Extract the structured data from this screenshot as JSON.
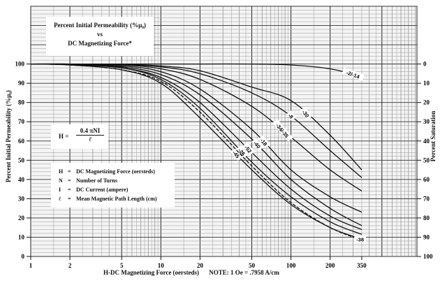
{
  "chart_data": {
    "type": "line",
    "title": [
      "Percent Initial Permeability (%μ₀)",
      "vs",
      "DC Magnetizing Force*"
    ],
    "xlabel": "H-DC Magnetizing Force (oersteds)",
    "xnote": "NOTE:  1 Oe = .7958 A/cm",
    "ylabel": "Percent Initial Permeability (%μ₀)",
    "y2label": "Percent Saturation",
    "xscale": "log",
    "xlim": [
      1,
      930
    ],
    "ylim": [
      0,
      130
    ],
    "grid": true,
    "x_ticks": [
      "1",
      "2",
      "5",
      "10",
      "20",
      "50",
      "100",
      "200",
      "350"
    ],
    "y_ticks": [
      "0",
      "10",
      "20",
      "30",
      "40",
      "50",
      "60",
      "70",
      "80",
      "90",
      "100"
    ],
    "y2_ticks": [
      "100",
      "90",
      "80",
      "70",
      "60",
      "50",
      "40",
      "30",
      "20",
      "10",
      "0"
    ],
    "x": [
      1,
      2,
      5,
      10,
      20,
      50,
      100,
      200,
      350
    ],
    "series": [
      {
        "name": "-2/-14",
        "values": [
          100,
          100,
          100,
          100,
          100,
          100,
          99.5,
          97.5,
          93.5
        ]
      },
      {
        "name": "-30",
        "values": [
          100,
          100,
          99.8,
          99,
          96.5,
          88,
          81,
          63,
          45
        ]
      },
      {
        "name": "-8",
        "values": [
          100,
          100,
          99.7,
          98.5,
          95,
          85,
          73,
          55,
          41
        ]
      },
      {
        "name": "-34/-35",
        "values": [
          100,
          100,
          99.5,
          97.5,
          92,
          78,
          62,
          45,
          34
        ]
      },
      {
        "name": "-18",
        "values": [
          100,
          99.8,
          99,
          96,
          87,
          66,
          45,
          31,
          23
        ]
      },
      {
        "name": "-40",
        "values": [
          100,
          99.8,
          98.5,
          94.5,
          84,
          61,
          40,
          25,
          16
        ]
      },
      {
        "name": "-52",
        "values": [
          100,
          99.7,
          98,
          93,
          80,
          54,
          35,
          21,
          14
        ]
      },
      {
        "name": "-26",
        "values": [
          100,
          99.7,
          98,
          92,
          77,
          49,
          31,
          18,
          11.5
        ]
      },
      {
        "name": "-45",
        "values": [
          100,
          99.5,
          97,
          90,
          72,
          45,
          27,
          15,
          9
        ]
      },
      {
        "name": "-38",
        "values": [
          100,
          99.5,
          97,
          91,
          75,
          47,
          28,
          15,
          8.5
        ],
        "dashed": true
      }
    ],
    "formula": {
      "lhs": "H =",
      "numerator": "0.4 πNI",
      "denominator": "ℓ"
    },
    "definitions": [
      {
        "symbol": "H",
        "eq": "=",
        "text": "DC Magnetizing Force (oersteds)"
      },
      {
        "symbol": "N",
        "eq": "=",
        "text": "Number of Turns"
      },
      {
        "symbol": "I",
        "eq": "=",
        "text": "DC Current (ampere)"
      },
      {
        "symbol": "ℓ",
        "eq": "=",
        "text": "Mean Magnetic Path Length (cm)"
      }
    ]
  }
}
